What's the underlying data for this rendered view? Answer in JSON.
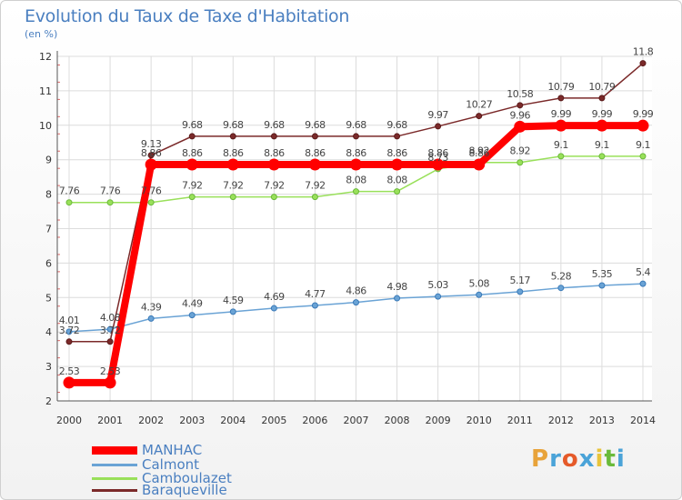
{
  "title": "Evolution du Taux de Taxe d'Habitation",
  "unit": "(en %)",
  "logo": {
    "text": "Proxiti",
    "colors": [
      "#e8a33a",
      "#4aa3d8",
      "#e55a2a",
      "#4aa3d8",
      "#e8c43a",
      "#6aba3a",
      "#4aa3d8"
    ]
  },
  "chart_data": {
    "type": "line",
    "title": "Evolution du Taux de Taxe d'Habitation",
    "ylabel": "(en %)",
    "xlabel": "",
    "x": [
      2000,
      2001,
      2002,
      2003,
      2004,
      2005,
      2006,
      2007,
      2008,
      2009,
      2010,
      2011,
      2012,
      2013,
      2014
    ],
    "ylim": [
      2,
      12
    ],
    "yticks": [
      2,
      3,
      4,
      5,
      6,
      7,
      8,
      9,
      10,
      11,
      12
    ],
    "grid": true,
    "legend": "bottom-left",
    "series": [
      {
        "name": "MANHAC",
        "color": "#ff0000",
        "values": [
          2.53,
          2.53,
          8.86,
          8.86,
          8.86,
          8.86,
          8.86,
          8.86,
          8.86,
          8.86,
          8.86,
          9.96,
          9.99,
          9.99,
          9.99
        ],
        "labels": [
          "2.53",
          "2.53",
          "8.86",
          "8.86",
          "8.86",
          "8.86",
          "8.86",
          "8.86",
          "8.86",
          "8.86",
          "8.86",
          "9.96",
          "9.99",
          "9.99",
          "9.99"
        ]
      },
      {
        "name": "Calmont",
        "color": "#6aa3d5",
        "values": [
          4.01,
          4.08,
          4.39,
          4.49,
          4.59,
          4.69,
          4.77,
          4.86,
          4.98,
          5.03,
          5.08,
          5.17,
          5.28,
          5.35,
          5.4
        ],
        "labels": [
          "4.01",
          "4.08",
          "4.39",
          "4.49",
          "4.59",
          "4.69",
          "4.77",
          "4.86",
          "4.98",
          "5.03",
          "5.08",
          "5.17",
          "5.28",
          "5.35",
          "5.4"
        ]
      },
      {
        "name": "Camboulazet",
        "color": "#99e05a",
        "values": [
          7.76,
          7.76,
          7.76,
          7.92,
          7.92,
          7.92,
          7.92,
          8.08,
          8.08,
          8.73,
          8.92,
          8.92,
          9.1,
          9.1,
          9.1
        ],
        "labels": [
          "7.76",
          "7.76",
          "7.76",
          "7.92",
          "7.92",
          "7.92",
          "7.92",
          "8.08",
          "8.08",
          "8.73",
          "8.92",
          "8.92",
          "9.1",
          "9.1",
          "9.1"
        ]
      },
      {
        "name": "Baraqueville",
        "color": "#7b2a2a",
        "values": [
          3.72,
          3.72,
          9.13,
          9.68,
          9.68,
          9.68,
          9.68,
          9.68,
          9.68,
          9.97,
          10.27,
          10.58,
          10.79,
          10.79,
          11.8
        ],
        "labels": [
          "3.72",
          "3.72",
          "9.13",
          "9.68",
          "9.68",
          "9.68",
          "9.68",
          "9.68",
          "9.68",
          "9.97",
          "10.27",
          "10.58",
          "10.79",
          "10.79",
          "11.8"
        ]
      }
    ]
  }
}
